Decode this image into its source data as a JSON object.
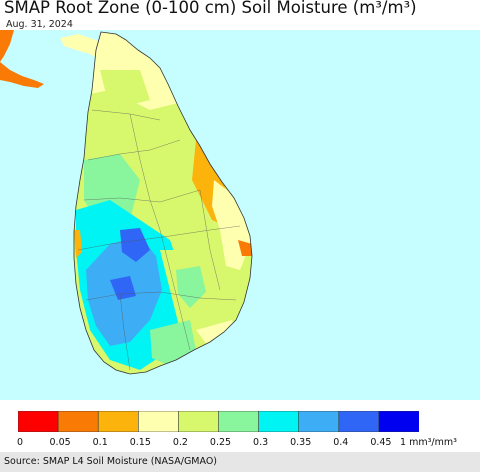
{
  "title": "SMAP Root Zone (0-100 cm) Soil Moisture (m³/m³)",
  "date": "Aug. 31, 2024",
  "source": "Source: SMAP L4 Soil Moisture (NASA/GMAO)",
  "legend": {
    "ticks": [
      "0",
      "0.05",
      "0.1",
      "0.15",
      "0.2",
      "0.25",
      "0.3",
      "0.35",
      "0.4",
      "0.45"
    ],
    "unit": "1 mm³/mm³",
    "colors": [
      "#ff0000",
      "#f97a05",
      "#fcb30b",
      "#ffffb0",
      "#d7f76d",
      "#89f59d",
      "#00f4f4",
      "#3daef5",
      "#2f66f5",
      "#0000f0"
    ]
  },
  "map": {
    "ocean_color": "#c6fdff",
    "region": "Sri Lanka"
  }
}
